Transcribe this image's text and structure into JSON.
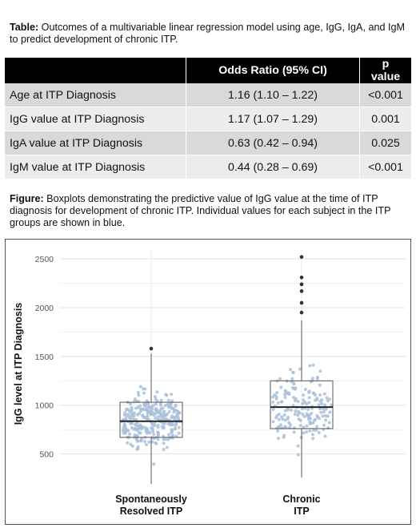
{
  "table_caption": {
    "label": "Table:",
    "text": " Outcomes of a multivariable linear regression model using age, IgG, IgA, and IgM to predict development of chronic ITP."
  },
  "table": {
    "headers": [
      "",
      "Odds Ratio (95% CI)",
      "p value"
    ],
    "rows": [
      {
        "label": "Age at ITP Diagnosis",
        "or": "1.16 (1.10 – 1.22)",
        "p": "<0.001"
      },
      {
        "label": "IgG value at ITP Diagnosis",
        "or": "1.17 (1.07 – 1.29)",
        "p": "0.001"
      },
      {
        "label": "IgA value at ITP Diagnosis",
        "or": "0.63 (0.42 – 0.94)",
        "p": "0.025"
      },
      {
        "label": "IgM value at ITP Diagnosis",
        "or": "0.44 (0.28 – 0.69)",
        "p": "<0.001"
      }
    ]
  },
  "figure_caption": {
    "label": "Figure:",
    "text": " Boxplots demonstrating the predictive value of IgG value at the time of ITP diagnosis for development of chronic ITP. Individual values for each subject in the ITP groups are shown in blue."
  },
  "chart_data": {
    "type": "box",
    "title": "",
    "ylabel": "IgG level at ITP Diagnosis",
    "xlabel": "",
    "ylim": [
      250,
      2600
    ],
    "yticks": [
      500,
      1000,
      1500,
      2000,
      2500
    ],
    "grid": true,
    "point_color": "#a9bfd9",
    "categories": [
      "Spontaneously\nResolved ITP",
      "Chronic\nITP"
    ],
    "groups": [
      {
        "category_lines": [
          "Spontaneously",
          "Resolved ITP"
        ],
        "min": 190,
        "q1": 670,
        "median": 835,
        "q3": 1030,
        "max": 1530,
        "outliers": [
          1580
        ],
        "n_points": 300
      },
      {
        "category_lines": [
          "Chronic",
          "ITP"
        ],
        "min": 260,
        "q1": 760,
        "median": 980,
        "q3": 1250,
        "max": 1870,
        "outliers": [
          1950,
          2050,
          2170,
          2240,
          2310,
          2520
        ],
        "n_points": 170
      }
    ]
  }
}
